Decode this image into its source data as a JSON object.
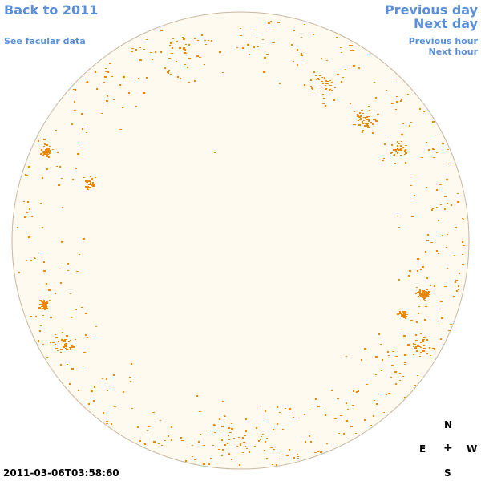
{
  "nav": {
    "back_label": "Back to 2011",
    "previous_day_label": "Previous day",
    "next_day_label": "Next day",
    "facular_label": "See facular data",
    "previous_hour_label": "Previous hour",
    "next_hour_label": "Next hour"
  },
  "compass": {
    "north": "N",
    "east": "E",
    "center": "+",
    "west": "W",
    "south": "S"
  },
  "timestamp": "2011-03-06T03:58:60",
  "colors": {
    "link": "#5b8fd9",
    "disk_fill": "#fffaf0",
    "disk_edge": "#c8b7a0",
    "facula": "#ee8800"
  },
  "sun_disk": {
    "faculae_regions": [
      {
        "location": "east limb, northern latitudes",
        "density": "high"
      },
      {
        "location": "east limb, southern latitudes",
        "density": "high"
      },
      {
        "location": "west limb, southern latitudes",
        "density": "high"
      },
      {
        "location": "north-west limb",
        "density": "medium"
      },
      {
        "location": "north polar band",
        "density": "low"
      },
      {
        "location": "south polar band",
        "density": "low"
      }
    ]
  }
}
